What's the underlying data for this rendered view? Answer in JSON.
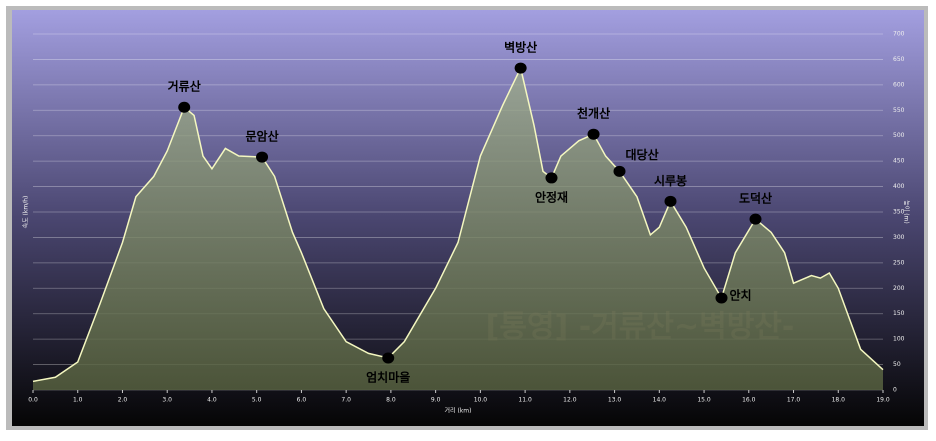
{
  "chart_data": {
    "type": "area",
    "x_label": "거리 (km)",
    "y_label": "높이 (m)",
    "y_label_left": "속도 (km/h)",
    "watermark": "[통영] -거류산~벽방산-",
    "color": "#f4f7c0",
    "fill": "#8fa07c",
    "grid": true,
    "xlim": [
      0,
      19
    ],
    "ylim": [
      0,
      700
    ],
    "xticks": [
      {
        "value": 0,
        "label": "0.0"
      },
      {
        "value": 1,
        "label": "1.0"
      },
      {
        "value": 2,
        "label": "2.0"
      },
      {
        "value": 3,
        "label": "3.0"
      },
      {
        "value": 4,
        "label": "4.0"
      },
      {
        "value": 5,
        "label": "5.0"
      },
      {
        "value": 6,
        "label": "6.0"
      },
      {
        "value": 7,
        "label": "7.0"
      },
      {
        "value": 8,
        "label": "8.0"
      },
      {
        "value": 9,
        "label": "9.0"
      },
      {
        "value": 10,
        "label": "10.0"
      },
      {
        "value": 11,
        "label": "11.0"
      },
      {
        "value": 12,
        "label": "12.0"
      },
      {
        "value": 13,
        "label": "13.0"
      },
      {
        "value": 14,
        "label": "14.0"
      },
      {
        "value": 15,
        "label": "15.0"
      },
      {
        "value": 16,
        "label": "16.0"
      },
      {
        "value": 17,
        "label": "17.0"
      },
      {
        "value": 18,
        "label": "18.0"
      },
      {
        "value": 19,
        "label": "19.0"
      }
    ],
    "yticks": [
      0,
      50,
      100,
      150,
      200,
      250,
      300,
      350,
      400,
      450,
      500,
      550,
      600,
      650,
      700
    ],
    "x": [
      0,
      0.5,
      1.0,
      1.5,
      2.0,
      2.3,
      2.7,
      3.0,
      3.38,
      3.6,
      3.8,
      4.0,
      4.3,
      4.6,
      5.12,
      5.4,
      5.8,
      6.0,
      6.5,
      7.0,
      7.5,
      7.94,
      8.3,
      9.0,
      9.5,
      10.0,
      10.5,
      10.9,
      11.2,
      11.4,
      11.59,
      11.8,
      12.2,
      12.53,
      12.8,
      13.11,
      13.5,
      13.8,
      14.0,
      14.25,
      14.6,
      15.0,
      15.39,
      15.7,
      16.15,
      16.5,
      16.8,
      17.0,
      17.4,
      17.6,
      17.8,
      18.0,
      18.5,
      19.0
    ],
    "values": [
      17,
      25,
      55,
      170,
      290,
      380,
      420,
      470,
      556,
      540,
      460,
      435,
      475,
      460,
      458,
      420,
      310,
      270,
      160,
      95,
      72,
      63,
      95,
      200,
      290,
      460,
      560,
      633,
      520,
      430,
      417,
      460,
      490,
      503,
      460,
      430,
      380,
      305,
      320,
      371,
      320,
      240,
      181,
      270,
      336,
      310,
      270,
      210,
      225,
      220,
      230,
      200,
      80,
      40
    ],
    "annotations": [
      {
        "label": "거류산",
        "x": 3.38,
        "y": 556,
        "pos": "above"
      },
      {
        "label": "문암산",
        "x": 5.12,
        "y": 458,
        "pos": "above"
      },
      {
        "label": "엄치마을",
        "x": 7.94,
        "y": 63,
        "pos": "below"
      },
      {
        "label": "벽방산",
        "x": 10.9,
        "y": 633,
        "pos": "above"
      },
      {
        "label": "안정재",
        "x": 11.59,
        "y": 417,
        "pos": "below"
      },
      {
        "label": "천개산",
        "x": 12.53,
        "y": 503,
        "pos": "above"
      },
      {
        "label": "대당산",
        "x": 13.11,
        "y": 430,
        "pos": "above-right"
      },
      {
        "label": "시루봉",
        "x": 14.25,
        "y": 371,
        "pos": "above"
      },
      {
        "label": "안치",
        "x": 15.39,
        "y": 181,
        "pos": "right"
      },
      {
        "label": "도덕산",
        "x": 16.15,
        "y": 336,
        "pos": "above"
      }
    ]
  }
}
